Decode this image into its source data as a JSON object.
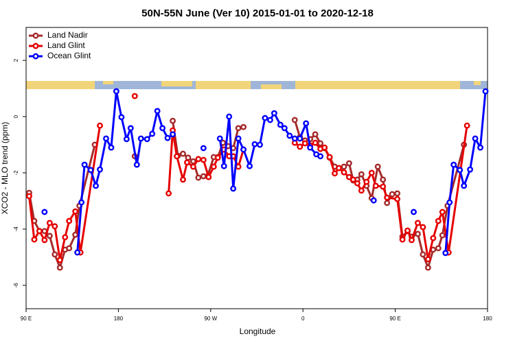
{
  "chart_data": {
    "type": "line",
    "title": "50N-55N June (Ver 10)   2015-01-01 to 2020-12-18",
    "x_label": "Longitude",
    "y_label": "XCO2 - MLO trend (ppm)",
    "xlim": [
      90,
      540
    ],
    "ylim": [
      -6.83,
      3.17
    ],
    "xticks": [
      {
        "value": 90,
        "label": "90 E"
      },
      180,
      {
        "value": 270,
        "label": "90 W"
      },
      {
        "value": 360,
        "label": "0"
      },
      {
        "value": 450,
        "label": "90 E"
      },
      {
        "value": 540,
        "label": "180"
      }
    ],
    "yticks": [
      -6,
      -4,
      -2,
      0,
      2
    ],
    "grid": false,
    "legend": "top-left",
    "series": [
      {
        "name": "Land Nadir",
        "color": "#a52a2a",
        "x": [
          93,
          98,
          103,
          108,
          113,
          118,
          123,
          128,
          132,
          138,
          142,
          157,
          null,
          196,
          null,
          233,
          238,
          243,
          248,
          253,
          258,
          263,
          267,
          273,
          277,
          282,
          287,
          292,
          297,
          302,
          null,
          352,
          357,
          362,
          367,
          372,
          377,
          381,
          386,
          391,
          395,
          400,
          405,
          409,
          413,
          417,
          422,
          427,
          433,
          438,
          442,
          447,
          452,
          457,
          462,
          466,
          472,
          477,
          482,
          487,
          492,
          496,
          501,
          517
        ],
        "values": [
          -2.71,
          -3.71,
          -4.07,
          -4.07,
          -4.24,
          -4.9,
          -5.37,
          -4.73,
          -4.68,
          -4.2,
          -3.17,
          -1.0,
          null,
          -1.41,
          null,
          -0.15,
          -1.39,
          -1.32,
          -1.46,
          -1.59,
          -2.17,
          -2.12,
          -2.12,
          -1.44,
          -1.44,
          -0.93,
          -1.05,
          -1.12,
          -0.41,
          -0.37,
          null,
          -0.12,
          -0.73,
          -0.85,
          -0.8,
          -0.63,
          -0.95,
          -1.12,
          -1.46,
          -1.78,
          -1.83,
          -1.78,
          -1.66,
          -2.27,
          -2.24,
          -2.05,
          -2.46,
          -2.9,
          -1.78,
          -2.24,
          -3.07,
          -2.76,
          -2.73,
          -4.27,
          -4.07,
          -4.27,
          -4.17,
          -4.9,
          -5.37,
          -4.73,
          -4.68,
          -4.22,
          -3.17,
          -1.0
        ]
      },
      {
        "name": "Land Glint",
        "color": "#e60000",
        "x": [
          93,
          98,
          103,
          108,
          113,
          118,
          123,
          128,
          132,
          138,
          143,
          162,
          null,
          196,
          null,
          229,
          233,
          237,
          243,
          247,
          253,
          258,
          263,
          268,
          273,
          277,
          283,
          288,
          292,
          297,
          302,
          null,
          352,
          357,
          362,
          367,
          372,
          377,
          381,
          386,
          391,
          395,
          400,
          405,
          409,
          413,
          417,
          422,
          427,
          431,
          438,
          442,
          452,
          457,
          462,
          466,
          472,
          477,
          482,
          487,
          492,
          496,
          502,
          520
        ],
        "values": [
          -2.83,
          -4.37,
          -4.07,
          -4.39,
          -3.78,
          -3.9,
          -5.1,
          -4.29,
          -3.71,
          -3.37,
          -4.83,
          -0.32,
          null,
          0.73,
          null,
          -2.73,
          -0.49,
          -1.41,
          -2.24,
          -1.63,
          -1.78,
          -1.51,
          -1.54,
          -2.15,
          -1.78,
          -1.46,
          -1.17,
          -1.41,
          -1.41,
          -1.78,
          -1.17,
          null,
          -0.93,
          -1.07,
          -0.95,
          -1.02,
          -0.93,
          -1.15,
          -1.1,
          -1.44,
          -2.02,
          -1.83,
          -1.98,
          -2.15,
          -2.24,
          -2.37,
          -2.63,
          -2.32,
          -2.0,
          -2.46,
          -2.49,
          -2.88,
          -2.93,
          -4.37,
          -4.05,
          -4.39,
          -3.78,
          -3.93,
          -5.07,
          -4.32,
          -3.71,
          -3.39,
          -4.83,
          -0.32
        ]
      },
      {
        "name": "Ocean Glint",
        "color": "#0000ff",
        "x": [
          108,
          null,
          140,
          144,
          147,
          153,
          158,
          162,
          168,
          173,
          178,
          183,
          188,
          192,
          198,
          202,
          208,
          213,
          218,
          223,
          228,
          233,
          null,
          263,
          null,
          279,
          283,
          288,
          292,
          297,
          302,
          308,
          313,
          318,
          323,
          328,
          332,
          338,
          342,
          347,
          352,
          357,
          363,
          367,
          373,
          377,
          null,
          429,
          null,
          468,
          null,
          499,
          503,
          507,
          513,
          517,
          523,
          528,
          533,
          538
        ],
        "values": [
          -3.39,
          null,
          -4.83,
          -3.05,
          -1.71,
          -1.9,
          -2.46,
          -1.88,
          -0.78,
          -1.1,
          0.9,
          -0.02,
          -0.8,
          -0.41,
          -1.71,
          -0.78,
          -0.8,
          -0.61,
          0.2,
          -0.41,
          -0.76,
          -0.63,
          null,
          -1.12,
          null,
          -0.78,
          -1.76,
          0.0,
          -2.56,
          -0.78,
          -1.17,
          -1.76,
          -0.98,
          -1.0,
          -0.05,
          -0.12,
          0.12,
          -0.29,
          -0.41,
          -0.68,
          -0.78,
          -0.78,
          -0.24,
          -1.1,
          -1.34,
          -1.41,
          null,
          -2.98,
          null,
          -3.39,
          null,
          -4.85,
          -3.05,
          -1.71,
          -1.9,
          -2.46,
          -1.88,
          -0.78,
          -1.1,
          0.9
        ]
      }
    ]
  }
}
